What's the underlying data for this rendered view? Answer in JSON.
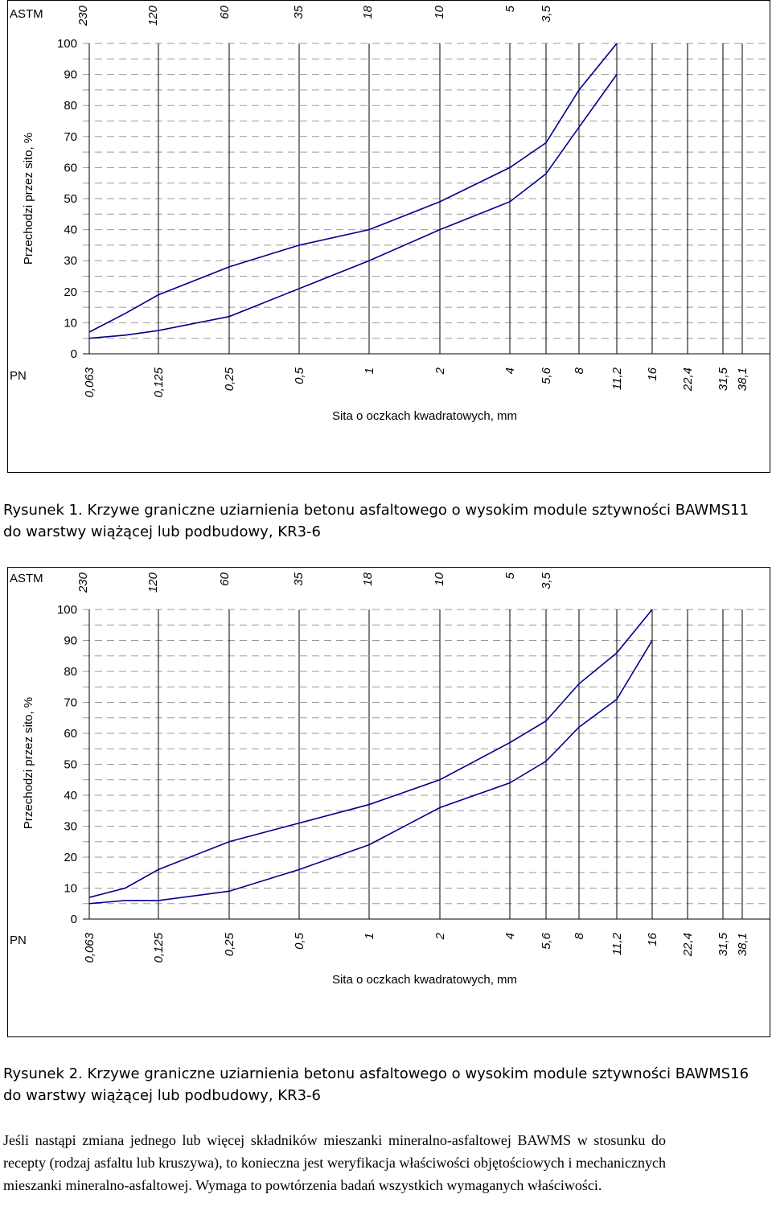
{
  "charts": [
    {
      "astm_label": "ASTM",
      "pn_label": "PN",
      "y_axis_label": "Przechodzi przez sito, %",
      "x_axis_label": "Sita o oczkach kwadratowych, mm",
      "y_ticks": [
        "100",
        "90",
        "80",
        "70",
        "60",
        "50",
        "40",
        "30",
        "20",
        "10",
        "0"
      ],
      "astm_ticks": [
        "230",
        "120",
        "60",
        "35",
        "18",
        "10",
        "5",
        "3,5"
      ],
      "pn_ticks": [
        "0,063",
        "0,125",
        "0,25",
        "0,5",
        "1",
        "2",
        "4",
        "5,6",
        "8",
        "11,2",
        "16",
        "22,4",
        "31,5",
        "38,1"
      ],
      "caption_label": "Rysunek 1.",
      "caption_text": "Krzywe graniczne uziarnienia betonu asfaltowego o wysokim module sztywności BAWMS11 do warstwy wiążącej lub podbudowy, KR3-6"
    },
    {
      "astm_label": "ASTM",
      "pn_label": "PN",
      "y_axis_label": "Przechodzi przez sito, %",
      "x_axis_label": "Sita o oczkach kwadratowych, mm",
      "y_ticks": [
        "100",
        "90",
        "80",
        "70",
        "60",
        "50",
        "40",
        "30",
        "20",
        "10",
        "0"
      ],
      "astm_ticks": [
        "230",
        "120",
        "60",
        "35",
        "18",
        "10",
        "5",
        "3,5"
      ],
      "pn_ticks": [
        "0,063",
        "0,125",
        "0,25",
        "0,5",
        "1",
        "2",
        "4",
        "5,6",
        "8",
        "11,2",
        "16",
        "22,4",
        "31,5",
        "38,1"
      ],
      "caption_label": "Rysunek 2.",
      "caption_text": "Krzywe graniczne uziarnienia betonu asfaltowego o wysokim module sztywności BAWMS16 do warstwy wiążącej lub podbudowy, KR3-6"
    }
  ],
  "chart_data": [
    {
      "type": "line",
      "x_scale": "log",
      "ylim": [
        0,
        100
      ],
      "grid": "horizontal-dashed",
      "line_color": "#00008b",
      "series": [
        {
          "x": [
            0.063,
            0.09,
            0.125,
            0.25,
            0.5,
            1,
            2,
            4,
            5.6,
            8,
            11.2
          ],
          "y": [
            7,
            13,
            19,
            28,
            35,
            40,
            49,
            60,
            68,
            85,
            100
          ]
        },
        {
          "x": [
            0.063,
            0.09,
            0.125,
            0.25,
            0.5,
            1,
            2,
            4,
            5.6,
            8,
            11.2
          ],
          "y": [
            5,
            6,
            7.5,
            12,
            21,
            30,
            40,
            49,
            58,
            73,
            90
          ]
        }
      ]
    },
    {
      "type": "line",
      "x_scale": "log",
      "ylim": [
        0,
        100
      ],
      "grid": "horizontal-dashed",
      "line_color": "#00008b",
      "series": [
        {
          "x": [
            0.063,
            0.09,
            0.125,
            0.25,
            0.5,
            1,
            2,
            4,
            5.6,
            8,
            11.2,
            16
          ],
          "y": [
            7,
            10,
            16,
            25,
            31,
            37,
            45,
            57,
            64,
            76,
            86,
            100
          ]
        },
        {
          "x": [
            0.063,
            0.09,
            0.125,
            0.25,
            0.5,
            1,
            2,
            4,
            5.6,
            8,
            11.2,
            16
          ],
          "y": [
            5,
            6,
            6,
            9,
            16,
            24,
            36,
            44,
            51,
            62,
            71,
            90
          ]
        }
      ]
    }
  ],
  "paragraph": "Jeśli nastąpi zmiana jednego lub więcej składników mieszanki mineralno-asfaltowej BAWMS w stosunku do recepty (rodzaj asfaltu lub kruszywa), to konieczna jest weryfikacja właściwości objętościowych i mechanicznych mieszanki mineralno-asfaltowej. Wymaga to powtórzenia badań wszystkich wymaganych właściwości."
}
